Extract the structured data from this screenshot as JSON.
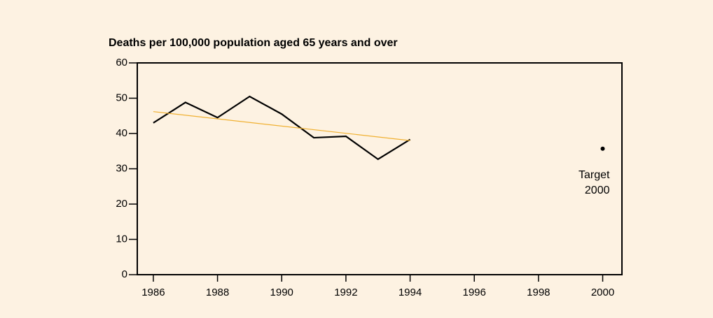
{
  "chart_data": {
    "type": "line",
    "title": "Deaths per 100,000 population aged 65 years and over",
    "xlim": [
      1985.5,
      2000.6
    ],
    "xticks": [
      1986,
      1988,
      1990,
      1992,
      1994,
      1996,
      1998,
      2000
    ],
    "ylim": [
      0,
      60
    ],
    "yticks": [
      0,
      10,
      20,
      30,
      40,
      50,
      60
    ],
    "series": [
      {
        "color": "#000000",
        "style": "line",
        "x": [
          1986,
          1987,
          1988,
          1989,
          1990,
          1991,
          1992,
          1993,
          1994
        ],
        "values": [
          43,
          48.8,
          44.5,
          50.5,
          45.5,
          38.8,
          39.2,
          32.7,
          38.3
        ]
      },
      {
        "color": "#f0b030",
        "style": "line",
        "x": [
          1986,
          1994
        ],
        "values": [
          46.2,
          38
        ]
      },
      {
        "color": "#000000",
        "style": "point",
        "x": [
          2000
        ],
        "values": [
          35.7
        ]
      }
    ],
    "annotation": [
      "Target",
      "2000"
    ]
  }
}
